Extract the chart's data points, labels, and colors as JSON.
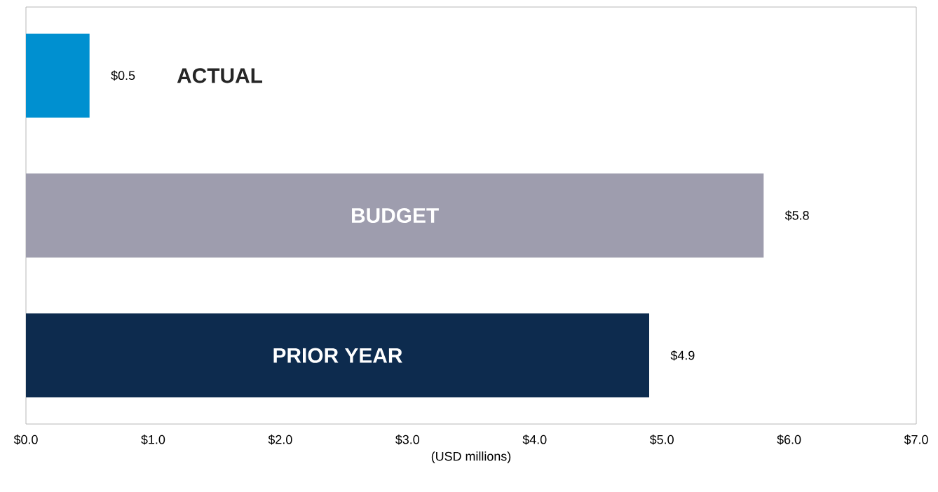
{
  "chart_data": {
    "type": "bar",
    "orientation": "horizontal",
    "categories": [
      "ACTUAL",
      "BUDGET",
      "PRIOR YEAR"
    ],
    "values": [
      0.5,
      5.8,
      4.9
    ],
    "colors": [
      "#0090d0",
      "#9e9dae",
      "#0d2b4e"
    ],
    "value_labels": [
      "$0.5",
      "$5.8",
      "$4.9"
    ],
    "xlabel": "(USD millions)",
    "xlim": [
      0,
      7
    ],
    "xticks": [
      {
        "value": 0,
        "label": "$0.0"
      },
      {
        "value": 1,
        "label": "$1.0"
      },
      {
        "value": 2,
        "label": "$2.0"
      },
      {
        "value": 3,
        "label": "$3.0"
      },
      {
        "value": 4,
        "label": "$4.0"
      },
      {
        "value": 5,
        "label": "$5.0"
      },
      {
        "value": 6,
        "label": "$6.0"
      },
      {
        "value": 7,
        "label": "$7.0"
      }
    ],
    "grid": false
  }
}
